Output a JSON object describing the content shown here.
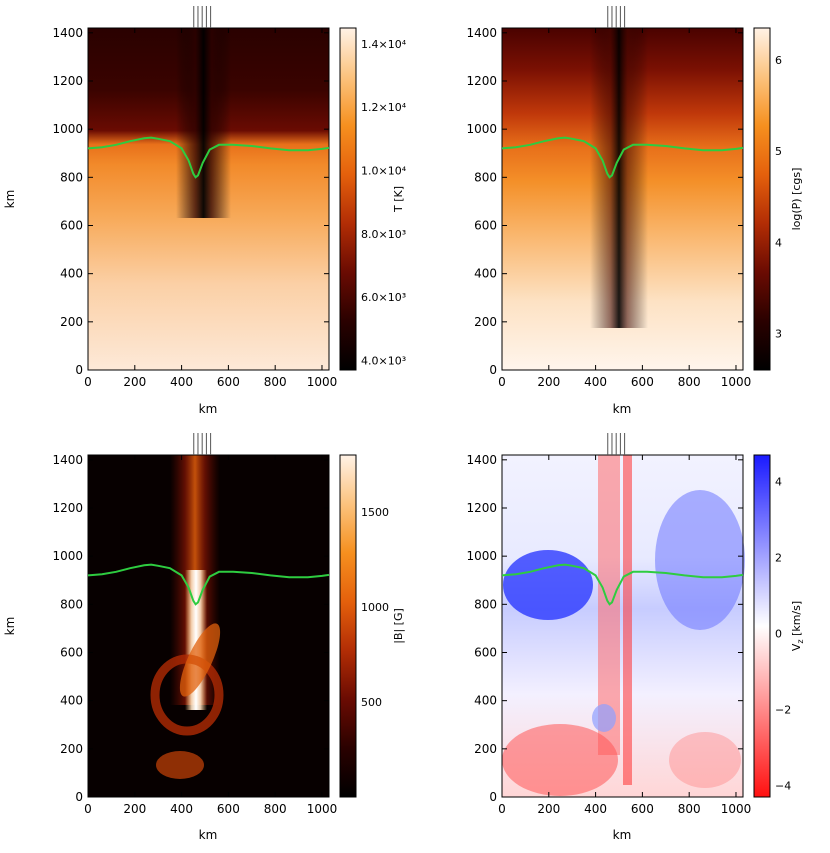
{
  "colors": {
    "temperature_map": [
      "#000000",
      "#2a0100",
      "#6a0b02",
      "#b22d05",
      "#e4600c",
      "#f6901f",
      "#fcc37e",
      "#fff2e6"
    ],
    "pressure_map": [
      "#000000",
      "#2a0100",
      "#6a0b02",
      "#b22d05",
      "#e4600c",
      "#f6901f",
      "#fcc37e",
      "#fff2e6"
    ],
    "field_map": [
      "#000000",
      "#2a0100",
      "#6a0b02",
      "#b22d05",
      "#e4600c",
      "#f6901f",
      "#fcc37e",
      "#fff2e6"
    ],
    "velocity_map": [
      "#ff1010",
      "#ffffff",
      "#1a1aff"
    ],
    "curve": "#2ecc40",
    "frame": "#000000"
  },
  "chart_data": [
    {
      "type": "heatmap",
      "id": "temperature",
      "xlabel": "km",
      "ylabel": "km",
      "xlim": [
        0,
        1030
      ],
      "ylim": [
        0,
        1420
      ],
      "xticks": [
        "0",
        "200",
        "400",
        "600",
        "800",
        "1000"
      ],
      "yticks": [
        "0",
        "200",
        "400",
        "600",
        "800",
        "1000",
        "1200",
        "1400"
      ],
      "colorbar": {
        "label": "T [K]",
        "range": [
          3700,
          14500
        ],
        "ticks": [
          {
            "value": 4000,
            "label": "4.0×10³"
          },
          {
            "value": 6000,
            "label": "6.0×10³"
          },
          {
            "value": 8000,
            "label": "8.0×10³"
          },
          {
            "value": 10000,
            "label": "1.0×10⁴"
          },
          {
            "value": 12000,
            "label": "1.2×10⁴"
          },
          {
            "value": 14000,
            "label": "1.4×10⁴"
          }
        ]
      },
      "marker_lines_x": [
        452,
        470,
        488,
        506,
        524
      ],
      "curve": {
        "x": [
          0,
          60,
          120,
          180,
          240,
          270,
          300,
          350,
          400,
          430,
          450,
          460,
          470,
          490,
          520,
          560,
          620,
          700,
          780,
          860,
          940,
          1000,
          1030
        ],
        "y": [
          920,
          925,
          935,
          950,
          962,
          965,
          960,
          950,
          920,
          870,
          815,
          800,
          808,
          860,
          915,
          935,
          935,
          930,
          920,
          912,
          912,
          918,
          922
        ]
      }
    },
    {
      "type": "heatmap",
      "id": "pressure",
      "xlabel": "km",
      "ylabel": "",
      "xlim": [
        0,
        1030
      ],
      "ylim": [
        0,
        1420
      ],
      "xticks": [
        "0",
        "200",
        "400",
        "600",
        "800",
        "1000"
      ],
      "yticks": [
        "0",
        "200",
        "400",
        "600",
        "800",
        "1000",
        "1200",
        "1400"
      ],
      "colorbar": {
        "label": "log(P) [cgs]",
        "range": [
          2.6,
          6.35
        ],
        "ticks": [
          {
            "value": 3,
            "label": "3"
          },
          {
            "value": 4,
            "label": "4"
          },
          {
            "value": 5,
            "label": "5"
          },
          {
            "value": 6,
            "label": "6"
          }
        ]
      },
      "marker_lines_x": [
        452,
        470,
        488,
        506,
        524
      ],
      "curve": {
        "x": [
          0,
          60,
          120,
          180,
          240,
          270,
          300,
          350,
          400,
          430,
          450,
          460,
          470,
          490,
          520,
          560,
          620,
          700,
          780,
          860,
          940,
          1000,
          1030
        ],
        "y": [
          920,
          925,
          935,
          950,
          962,
          965,
          960,
          950,
          920,
          870,
          815,
          800,
          808,
          860,
          915,
          935,
          935,
          930,
          920,
          912,
          912,
          918,
          922
        ]
      }
    },
    {
      "type": "heatmap",
      "id": "field",
      "xlabel": "km",
      "ylabel": "km",
      "xlim": [
        0,
        1030
      ],
      "ylim": [
        0,
        1420
      ],
      "xticks": [
        "0",
        "200",
        "400",
        "600",
        "800",
        "1000"
      ],
      "yticks": [
        "0",
        "200",
        "400",
        "600",
        "800",
        "1000",
        "1200",
        "1400"
      ],
      "colorbar": {
        "label": "|B| [G]",
        "range": [
          0,
          1800
        ],
        "ticks": [
          {
            "value": 500,
            "label": "500"
          },
          {
            "value": 1000,
            "label": "1000"
          },
          {
            "value": 1500,
            "label": "1500"
          }
        ]
      },
      "marker_lines_x": [
        452,
        470,
        488,
        506,
        524
      ],
      "curve": {
        "x": [
          0,
          60,
          120,
          180,
          240,
          270,
          300,
          350,
          400,
          430,
          450,
          460,
          470,
          490,
          520,
          560,
          620,
          700,
          780,
          860,
          940,
          1000,
          1030
        ],
        "y": [
          920,
          925,
          935,
          950,
          962,
          965,
          960,
          950,
          920,
          870,
          815,
          800,
          808,
          860,
          915,
          935,
          935,
          930,
          920,
          912,
          912,
          918,
          922
        ]
      }
    },
    {
      "type": "heatmap",
      "id": "velocity",
      "xlabel": "km",
      "ylabel": "",
      "xlim": [
        0,
        1030
      ],
      "ylim": [
        0,
        1420
      ],
      "xticks": [
        "0",
        "200",
        "400",
        "600",
        "800",
        "1000"
      ],
      "yticks": [
        "0",
        "200",
        "400",
        "600",
        "800",
        "1000",
        "1200",
        "1400"
      ],
      "colorbar": {
        "label": "V",
        "label_sub": "z",
        "label_unit": " [km/s]",
        "range": [
          -4.3,
          4.7
        ],
        "ticks": [
          {
            "value": -4,
            "label": "−4"
          },
          {
            "value": -2,
            "label": "−2"
          },
          {
            "value": 0,
            "label": "0"
          },
          {
            "value": 2,
            "label": "2"
          },
          {
            "value": 4,
            "label": "4"
          }
        ]
      },
      "marker_lines_x": [
        452,
        470,
        488,
        506,
        524
      ],
      "curve": {
        "x": [
          0,
          60,
          120,
          180,
          240,
          270,
          300,
          350,
          400,
          430,
          450,
          460,
          470,
          490,
          520,
          560,
          620,
          700,
          780,
          860,
          940,
          1000,
          1030
        ],
        "y": [
          920,
          925,
          935,
          950,
          962,
          965,
          960,
          950,
          920,
          870,
          815,
          800,
          808,
          860,
          915,
          935,
          935,
          930,
          920,
          912,
          912,
          918,
          922
        ]
      }
    }
  ]
}
